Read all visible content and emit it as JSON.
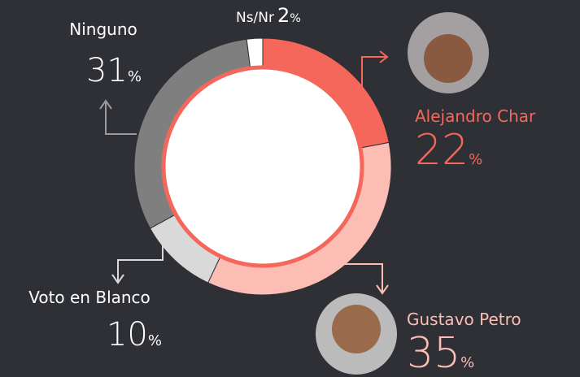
{
  "chart_data": {
    "type": "donut",
    "categories": [
      "Alejandro Char",
      "Gustavo Petro",
      "Voto en Blanco",
      "Ninguno",
      "Ns/Nr"
    ],
    "values": [
      22,
      35,
      10,
      31,
      2
    ],
    "colors": [
      "#f4675a",
      "#fbbdb4",
      "#d9d9d9",
      "#7f7f7f",
      "#ffffff"
    ],
    "unit": "%"
  }
}
